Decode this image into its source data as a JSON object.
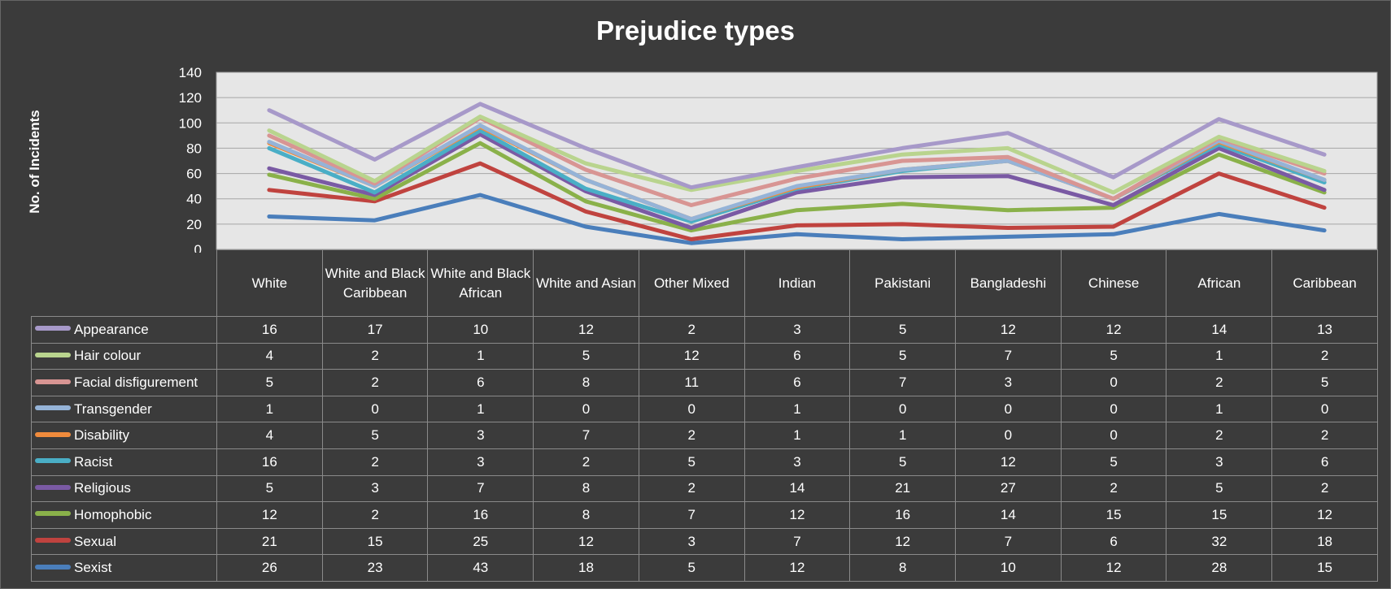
{
  "chart_data": {
    "type": "line",
    "title": "Prejudice types",
    "ylabel": "No. of Incidents",
    "xlabel": "",
    "ylim": [
      0,
      140
    ],
    "yticks": [
      "0",
      "20",
      "40",
      "60",
      "80",
      "100",
      "120",
      "140"
    ],
    "stacked": true,
    "grid": true,
    "legend": "data-table",
    "categories": [
      "White",
      "White and Black Caribbean",
      "White and Black African",
      "White and Asian",
      "Other Mixed",
      "Indian",
      "Pakistani",
      "Bangladeshi",
      "Chinese",
      "African",
      "Caribbean"
    ],
    "series": [
      {
        "name": "Appearance",
        "color": "#a799c9",
        "values": [
          16,
          17,
          10,
          12,
          2,
          3,
          5,
          12,
          12,
          14,
          13
        ]
      },
      {
        "name": "Hair colour",
        "color": "#b9d48e",
        "values": [
          4,
          2,
          1,
          5,
          12,
          6,
          5,
          7,
          5,
          1,
          2
        ]
      },
      {
        "name": "Facial disfigurement",
        "color": "#d89593",
        "values": [
          5,
          2,
          6,
          8,
          11,
          6,
          7,
          3,
          0,
          2,
          5
        ]
      },
      {
        "name": "Transgender",
        "color": "#95b3d7",
        "values": [
          1,
          0,
          1,
          0,
          0,
          1,
          0,
          0,
          0,
          1,
          0
        ]
      },
      {
        "name": "Disability",
        "color": "#f08b3c",
        "values": [
          4,
          5,
          3,
          7,
          2,
          1,
          1,
          0,
          0,
          2,
          2
        ]
      },
      {
        "name": "Racist",
        "color": "#4aaec6",
        "values": [
          16,
          2,
          3,
          2,
          5,
          3,
          5,
          12,
          5,
          3,
          6
        ]
      },
      {
        "name": "Religious",
        "color": "#7a5aa4",
        "values": [
          5,
          3,
          7,
          8,
          2,
          14,
          21,
          27,
          2,
          5,
          2
        ]
      },
      {
        "name": "Homophobic",
        "color": "#8ab14a",
        "values": [
          12,
          2,
          16,
          8,
          7,
          12,
          16,
          14,
          15,
          15,
          12
        ]
      },
      {
        "name": "Sexual",
        "color": "#c0433f",
        "values": [
          21,
          15,
          25,
          12,
          3,
          7,
          12,
          7,
          6,
          32,
          18
        ]
      },
      {
        "name": "Sexist",
        "color": "#4a7ebb",
        "values": [
          26,
          23,
          43,
          18,
          5,
          12,
          8,
          10,
          12,
          28,
          15
        ]
      }
    ]
  }
}
